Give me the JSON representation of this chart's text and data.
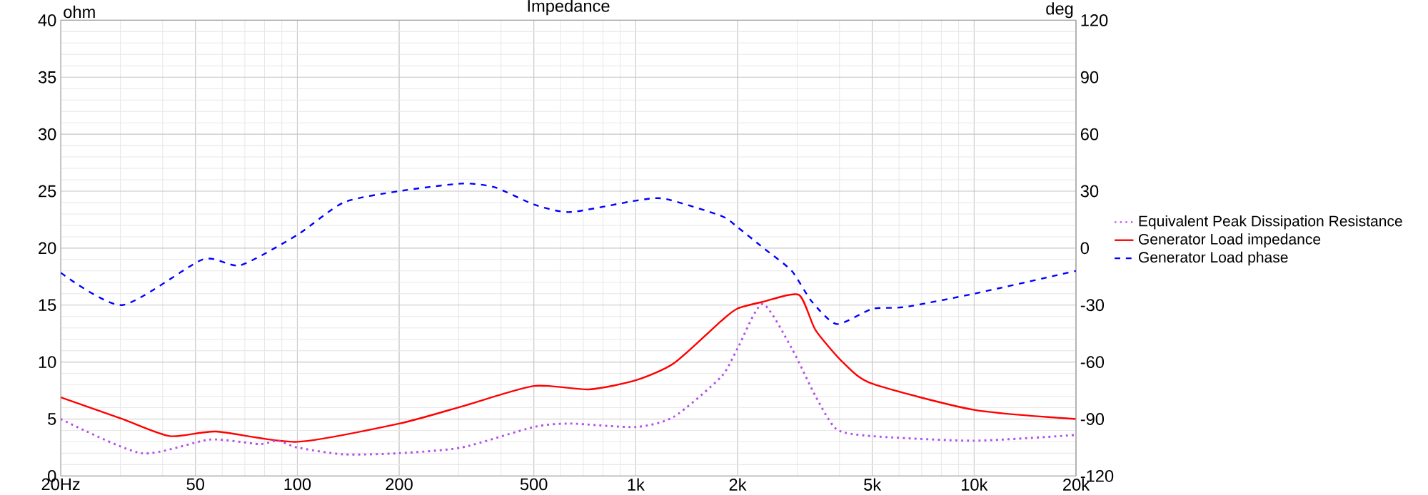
{
  "chart_data": {
    "type": "line",
    "title": "Impedance",
    "ylabel": "ohm",
    "y2label": "deg",
    "xlim": [
      20,
      20000
    ],
    "ylim": [
      0,
      40
    ],
    "y2lim": [
      -120,
      120
    ],
    "xticks": [
      {
        "value": 20,
        "label": "20Hz"
      },
      50,
      100,
      200,
      500,
      {
        "value": 1000,
        "label": "1k"
      },
      {
        "value": 2000,
        "label": "2k"
      },
      {
        "value": 5000,
        "label": "5k"
      },
      {
        "value": 10000,
        "label": "10k"
      },
      {
        "value": 20000,
        "label": "20k"
      }
    ],
    "yticks": [
      0,
      5,
      10,
      15,
      20,
      25,
      30,
      35,
      40
    ],
    "y2ticks": [
      -120,
      -90,
      -60,
      -30,
      0,
      30,
      60,
      90,
      120
    ],
    "log": "x",
    "grid": true,
    "legend": "right",
    "series": [
      {
        "name": "Equivalent Peak Dissipation Resistance",
        "color": "#b44fe8",
        "line_style": "dotted",
        "x": [
          20,
          34.6,
          55.2,
          77.2,
          87.6,
          100,
          137,
          200,
          306,
          500,
          640,
          1000,
          1297,
          1788,
          2000,
          2370,
          2891,
          3400,
          3926,
          5000,
          10000,
          20000
        ],
        "values": [
          5.0,
          2.0,
          3.2,
          2.8,
          3.1,
          2.5,
          1.9,
          2.0,
          2.5,
          4.3,
          4.6,
          4.3,
          5.2,
          8.7,
          11.2,
          15.1,
          11.2,
          7.0,
          4.1,
          3.5,
          3.1,
          3.6
        ]
      },
      {
        "name": "Generator Load impedance",
        "color": "#ff0000",
        "line_style": "solid",
        "x": [
          20,
          30.4,
          42,
          57.6,
          100,
          200,
          306,
          500,
          728,
          1000,
          1297,
          1788,
          2000,
          2387,
          3035,
          3400,
          4120,
          5000,
          10000,
          20000
        ],
        "values": [
          6.9,
          5.0,
          3.5,
          3.9,
          3.0,
          4.6,
          6.1,
          7.9,
          7.6,
          8.4,
          9.9,
          13.6,
          14.7,
          15.3,
          15.9,
          12.8,
          9.9,
          8.1,
          5.8,
          5.0
        ]
      },
      {
        "name": "Generator Load phase",
        "color": "#0000ff",
        "line_style": "dashed",
        "axis": "y2",
        "x": [
          20,
          30.4,
          52.5,
          67.9,
          100,
          137,
          200,
          306,
          384,
          500,
          640,
          1000,
          1217,
          1788,
          2000,
          2387,
          2891,
          3310,
          3926,
          5000,
          6250,
          10000,
          20000
        ],
        "values": [
          -13,
          -30,
          -6,
          -9,
          7,
          24,
          30,
          34,
          32,
          23,
          19,
          25,
          26,
          17,
          11,
          0,
          -12,
          -28,
          -40,
          -32,
          -31,
          -24,
          -12
        ]
      }
    ]
  }
}
